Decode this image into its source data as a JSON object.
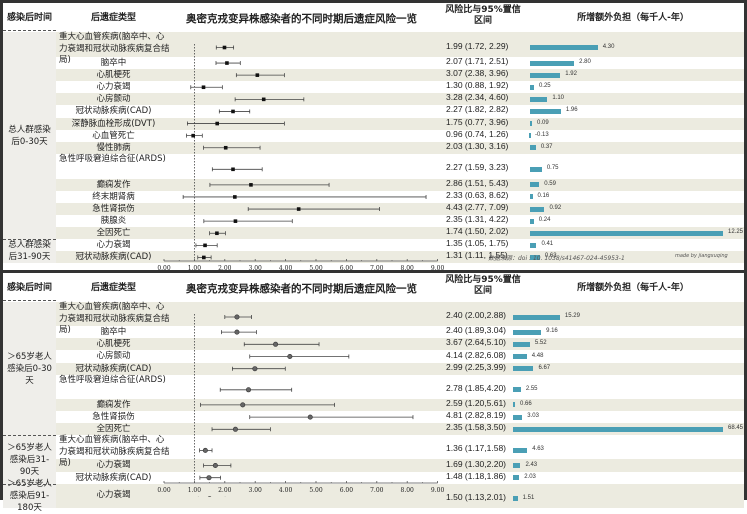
{
  "chart_data": [
    {
      "type": "forest",
      "title": "奥密克戎变异株感染者的不同时期后遗症风险一览",
      "headers": {
        "time": "感染后时间",
        "type": "后遗症类型",
        "hr": "风险比与95%置信区间",
        "burden": "所增额外负担（每千人-年）"
      },
      "xlim": [
        0,
        9
      ],
      "ticks": [
        "0.00",
        "1.00",
        "2.00",
        "3.00",
        "4.00",
        "5.00",
        "6.00",
        "7.00",
        "8.00",
        "9.00"
      ],
      "reference_line": 1,
      "marker": "square",
      "bar_color": "#4a9fb5",
      "groups": [
        {
          "label": "总人群感染后0-30天",
          "rows": [
            {
              "name": "重大心血管疾病(脑卒中、心力衰竭和冠状动脉疾病复合结局)",
              "hr": 1.99,
              "lo": 1.72,
              "hi": 2.29,
              "hr_text": "1.99 (1.72, 2.29)",
              "burden": 4.3,
              "burden_text": "4.30"
            },
            {
              "name": "脑卒中",
              "hr": 2.07,
              "lo": 1.71,
              "hi": 2.51,
              "hr_text": "2.07 (1.71, 2.51)",
              "burden": 2.8,
              "burden_text": "2.80"
            },
            {
              "name": "心肌梗死",
              "hr": 3.07,
              "lo": 2.38,
              "hi": 3.96,
              "hr_text": "3.07 (2.38, 3.96)",
              "burden": 1.92,
              "burden_text": "1.92"
            },
            {
              "name": "心力衰竭",
              "hr": 1.3,
              "lo": 0.88,
              "hi": 1.92,
              "hr_text": "1.30 (0.88, 1.92)",
              "burden": 0.25,
              "burden_text": "0.25"
            },
            {
              "name": "心房颤动",
              "hr": 3.28,
              "lo": 2.34,
              "hi": 4.6,
              "hr_text": "3.28 (2.34, 4.60)",
              "burden": 1.1,
              "burden_text": "1.10"
            },
            {
              "name": "冠状动脉疾病(CAD)",
              "hr": 2.27,
              "lo": 1.82,
              "hi": 2.82,
              "hr_text": "2.27 (1.82, 2.82)",
              "burden": 1.96,
              "burden_text": "1.96"
            },
            {
              "name": "深静脉血栓形成(DVT)",
              "hr": 1.75,
              "lo": 0.77,
              "hi": 3.96,
              "hr_text": "1.75 (0.77, 3.96)",
              "burden": 0.09,
              "burden_text": "0.09"
            },
            {
              "name": "心血管死亡",
              "hr": 0.96,
              "lo": 0.74,
              "hi": 1.26,
              "hr_text": "0.96 (0.74, 1.26)",
              "burden": -0.13,
              "burden_text": "-0.13"
            },
            {
              "name": "慢性肺病",
              "hr": 2.03,
              "lo": 1.3,
              "hi": 3.16,
              "hr_text": "2.03 (1.30, 3.16)",
              "burden": 0.37,
              "burden_text": "0.37"
            },
            {
              "name": "急性呼吸窘迫综合征(ARDS)",
              "hr": 2.27,
              "lo": 1.59,
              "hi": 3.23,
              "hr_text": "2.27 (1.59, 3.23)",
              "burden": 0.75,
              "burden_text": "0.75"
            },
            {
              "name": "癫痫发作",
              "hr": 2.86,
              "lo": 1.51,
              "hi": 5.43,
              "hr_text": "2.86 (1.51, 5.43)",
              "burden": 0.59,
              "burden_text": "0.59"
            },
            {
              "name": "终末期肾病",
              "hr": 2.33,
              "lo": 0.63,
              "hi": 8.62,
              "hr_text": "2.33 (0.63, 8.62)",
              "burden": 0.16,
              "burden_text": "0.16"
            },
            {
              "name": "急性肾损伤",
              "hr": 4.43,
              "lo": 2.77,
              "hi": 7.09,
              "hr_text": "4.43 (2.77, 7.09)",
              "burden": 0.92,
              "burden_text": "0.92"
            },
            {
              "name": "胰腺炎",
              "hr": 2.35,
              "lo": 1.31,
              "hi": 4.22,
              "hr_text": "2.35 (1.31, 4.22)",
              "burden": 0.24,
              "burden_text": "0.24"
            },
            {
              "name": "全因死亡",
              "hr": 1.74,
              "lo": 1.5,
              "hi": 2.02,
              "hr_text": "1.74 (1.50, 2.02)",
              "burden": 12.25,
              "burden_text": "12.25"
            }
          ]
        },
        {
          "label": "总人群感染后31-90天",
          "rows": [
            {
              "name": "心力衰竭",
              "hr": 1.35,
              "lo": 1.05,
              "hi": 1.75,
              "hr_text": "1.35 (1.05, 1.75)",
              "burden": 0.41,
              "burden_text": "0.41"
            },
            {
              "name": "冠状动脉疾病(CAD)",
              "hr": 1.31,
              "lo": 1.11,
              "hi": 1.55,
              "hr_text": "1.31 (1.11, 1.55)",
              "burden": 0.63,
              "burden_text": "0.63"
            }
          ]
        }
      ],
      "source": "数据来源：doi : 10. 1038/s41467-024-45953-1",
      "credit": "made by jiangxuqing"
    },
    {
      "type": "forest",
      "title": "奥密克戎变异株感染者的不同时期后遗症风险一览",
      "headers": {
        "time": "感染后时间",
        "type": "后遗症类型",
        "hr": "风险比与95%置信区间",
        "burden": "所增额外负担（每千人-年）"
      },
      "xlim": [
        0,
        9
      ],
      "ticks": [
        "0.00",
        "1.00",
        "2.00",
        "3.00",
        "4.00",
        "5.00",
        "6.00",
        "7.00",
        "8.00",
        "9.00"
      ],
      "reference_line": 1,
      "marker": "circle",
      "bar_color": "#4a9fb5",
      "groups": [
        {
          "label": "＞65岁老人感染后0-30天",
          "rows": [
            {
              "name": "重大心血管疾病(脑卒中、心力衰竭和冠状动脉疾病复合结局)",
              "hr": 2.4,
              "lo": 2.0,
              "hi": 2.88,
              "hr_text": "2.40 (2.00,2.88)",
              "burden": 15.29,
              "burden_text": "15.29"
            },
            {
              "name": "脑卒中",
              "hr": 2.4,
              "lo": 1.89,
              "hi": 3.04,
              "hr_text": "2.40 (1.89,3.04)",
              "burden": 9.16,
              "burden_text": "9.16"
            },
            {
              "name": "心肌梗死",
              "hr": 3.67,
              "lo": 2.64,
              "hi": 5.1,
              "hr_text": "3.67 (2.64,5.10)",
              "burden": 5.52,
              "burden_text": "5.52"
            },
            {
              "name": "心房颤动",
              "hr": 4.14,
              "lo": 2.82,
              "hi": 6.08,
              "hr_text": "4.14 (2.82,6.08)",
              "burden": 4.48,
              "burden_text": "4.48"
            },
            {
              "name": "冠状动脉疾病(CAD)",
              "hr": 2.99,
              "lo": 2.25,
              "hi": 3.99,
              "hr_text": "2.99 (2.25,3.99)",
              "burden": 6.67,
              "burden_text": "6.67"
            },
            {
              "name": "急性呼吸窘迫综合征(ARDS)",
              "hr": 2.78,
              "lo": 1.85,
              "hi": 4.2,
              "hr_text": "2.78 (1.85,4.20)",
              "burden": 2.55,
              "burden_text": "2.55"
            },
            {
              "name": "癫痫发作",
              "hr": 2.59,
              "lo": 1.2,
              "hi": 5.61,
              "hr_text": "2.59 (1.20,5.61)",
              "burden": 0.66,
              "burden_text": "0.66"
            },
            {
              "name": "急性肾损伤",
              "hr": 4.81,
              "lo": 2.82,
              "hi": 8.19,
              "hr_text": "4.81 (2.82,8.19)",
              "burden": 3.03,
              "burden_text": "3.03"
            },
            {
              "name": "全因死亡",
              "hr": 2.35,
              "lo": 1.58,
              "hi": 3.5,
              "hr_text": "2.35 (1.58,3.50)",
              "burden": 68.45,
              "burden_text": "68.45"
            }
          ]
        },
        {
          "label": "＞65岁老人感染后31-90天",
          "rows": [
            {
              "name": "重大心血管疾病(脑卒中、心力衰竭和冠状动脉疾病复合结局)",
              "hr": 1.36,
              "lo": 1.17,
              "hi": 1.58,
              "hr_text": "1.36 (1.17,1.58)",
              "burden": 4.63,
              "burden_text": "4.63"
            },
            {
              "name": "心力衰竭",
              "hr": 1.69,
              "lo": 1.3,
              "hi": 2.2,
              "hr_text": "1.69 (1.30,2.20)",
              "burden": 2.43,
              "burden_text": "2.43"
            },
            {
              "name": "冠状动脉疾病(CAD)",
              "hr": 1.48,
              "lo": 1.18,
              "hi": 1.86,
              "hr_text": "1.48 (1.18,1.86)",
              "burden": 2.03,
              "burden_text": "2.03"
            }
          ]
        },
        {
          "label": "＞65岁老人感染后91-180天",
          "rows": [
            {
              "name": "心力衰竭",
              "hr": 1.5,
              "lo": 1.13,
              "hi": 2.01,
              "hr_text": "1.50 (1.13,2.01)",
              "burden": 1.51,
              "burden_text": "1.51"
            }
          ]
        }
      ]
    }
  ]
}
